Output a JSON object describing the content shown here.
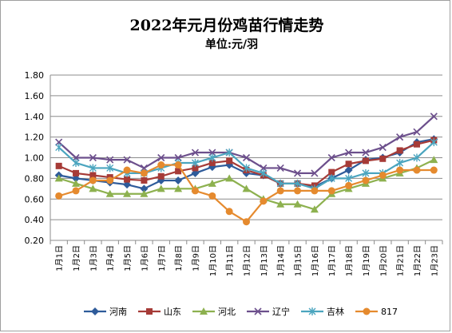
{
  "chart_data": {
    "type": "line",
    "title": "2022年元月份鸡苗行情走势",
    "subtitle": "单位:元/羽",
    "xlabel": "",
    "ylabel": "",
    "ylim": [
      0.2,
      1.8
    ],
    "y_ticks": [
      "0.20",
      "0.40",
      "0.60",
      "0.80",
      "1.00",
      "1.20",
      "1.40",
      "1.60",
      "1.80"
    ],
    "grid": true,
    "legend_position": "bottom",
    "categories": [
      "1月1日",
      "1月2日",
      "1月3日",
      "1月4日",
      "1月5日",
      "1月6日",
      "1月7日",
      "1月8日",
      "1月9日",
      "1月10日",
      "1月11日",
      "1月12日",
      "1月13日",
      "1月14日",
      "1月15日",
      "1月16日",
      "1月17日",
      "1月18日",
      "1月19日",
      "1月20日",
      "1月21日",
      "1月22日",
      "1月23日"
    ],
    "series": [
      {
        "name": "河南",
        "color": "#2e5b9a",
        "marker": "diamond",
        "values": [
          0.83,
          0.8,
          0.78,
          0.76,
          0.74,
          0.7,
          0.78,
          0.78,
          0.85,
          0.91,
          0.93,
          0.85,
          0.83,
          0.75,
          0.75,
          0.72,
          0.8,
          0.88,
          0.98,
          1.0,
          1.05,
          1.15,
          1.18
        ]
      },
      {
        "name": "山东",
        "color": "#a63b37",
        "marker": "square",
        "values": [
          0.92,
          0.85,
          0.83,
          0.81,
          0.79,
          0.78,
          0.82,
          0.87,
          0.9,
          0.95,
          0.97,
          0.88,
          0.83,
          0.75,
          0.75,
          0.73,
          0.86,
          0.94,
          0.97,
          0.99,
          1.07,
          1.13,
          1.17
        ]
      },
      {
        "name": "河北",
        "color": "#8db14f",
        "marker": "triangle",
        "values": [
          0.8,
          0.75,
          0.7,
          0.65,
          0.65,
          0.65,
          0.7,
          0.7,
          0.7,
          0.75,
          0.8,
          0.7,
          0.6,
          0.55,
          0.55,
          0.5,
          0.65,
          0.7,
          0.75,
          0.8,
          0.85,
          0.9,
          0.98
        ]
      },
      {
        "name": "辽宁",
        "color": "#6c4f8c",
        "marker": "x",
        "values": [
          1.15,
          1.0,
          1.0,
          0.98,
          0.98,
          0.9,
          1.0,
          1.0,
          1.05,
          1.05,
          1.05,
          1.0,
          0.9,
          0.9,
          0.85,
          0.85,
          1.0,
          1.05,
          1.05,
          1.1,
          1.2,
          1.25,
          1.4
        ]
      },
      {
        "name": "吉林",
        "color": "#4ba5bf",
        "marker": "star",
        "values": [
          1.1,
          0.95,
          0.9,
          0.9,
          0.85,
          0.85,
          0.9,
          0.95,
          0.95,
          1.0,
          1.05,
          0.9,
          0.85,
          0.75,
          0.75,
          0.7,
          0.8,
          0.8,
          0.85,
          0.85,
          0.95,
          1.0,
          1.15
        ]
      },
      {
        "name": "817",
        "color": "#e58a2e",
        "marker": "circle",
        "values": [
          0.63,
          0.68,
          0.78,
          0.78,
          0.88,
          0.85,
          0.93,
          0.93,
          0.68,
          0.63,
          0.48,
          0.38,
          0.58,
          0.68,
          0.68,
          0.68,
          0.68,
          0.73,
          0.78,
          0.83,
          0.88,
          0.88,
          0.88
        ]
      }
    ]
  }
}
